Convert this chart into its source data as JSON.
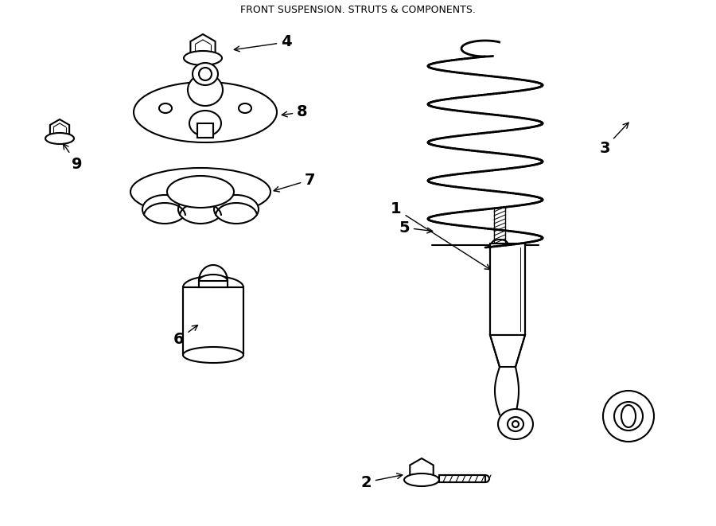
{
  "title": "FRONT SUSPENSION. STRUTS & COMPONENTS.",
  "background_color": "#ffffff",
  "line_color": "#000000",
  "line_width": 1.5,
  "fig_width": 9.0,
  "fig_height": 6.61,
  "dpi": 100
}
